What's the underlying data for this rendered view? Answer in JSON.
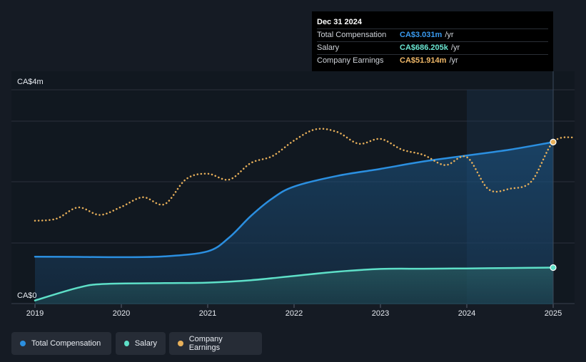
{
  "chart_data": {
    "type": "line",
    "title": "",
    "xlabel": "",
    "ylabel": "",
    "x_ticks": [
      "2019",
      "2020",
      "2021",
      "2022",
      "2023",
      "2024",
      "2025"
    ],
    "y_tick_labels": {
      "top": "CA$4m",
      "bottom": "CA$0"
    },
    "ylim": [
      0,
      3.5
    ],
    "legend_position": "bottom-left",
    "grid": true,
    "series": [
      {
        "name": "Total Compensation",
        "color": "#2b8fe0",
        "style": "solid-area",
        "points": [
          [
            2019.0,
            0.89
          ],
          [
            2019.5,
            0.885
          ],
          [
            2020.0,
            0.88
          ],
          [
            2020.5,
            0.895
          ],
          [
            2021.0,
            0.99
          ],
          [
            2021.25,
            1.25
          ],
          [
            2021.5,
            1.65
          ],
          [
            2021.75,
            1.98
          ],
          [
            2022.0,
            2.2
          ],
          [
            2022.5,
            2.4
          ],
          [
            2023.0,
            2.53
          ],
          [
            2023.5,
            2.67
          ],
          [
            2024.0,
            2.78
          ],
          [
            2024.5,
            2.89
          ],
          [
            2025.0,
            3.031
          ]
        ]
      },
      {
        "name": "Salary",
        "color": "#5ee0c8",
        "style": "solid-area",
        "points": [
          [
            2019.0,
            0.07
          ],
          [
            2019.5,
            0.31
          ],
          [
            2019.8,
            0.38
          ],
          [
            2020.5,
            0.395
          ],
          [
            2021.0,
            0.405
          ],
          [
            2021.5,
            0.45
          ],
          [
            2022.0,
            0.53
          ],
          [
            2022.5,
            0.61
          ],
          [
            2023.0,
            0.66
          ],
          [
            2023.5,
            0.665
          ],
          [
            2024.0,
            0.67
          ],
          [
            2024.5,
            0.678
          ],
          [
            2025.0,
            0.686
          ]
        ]
      },
      {
        "name": "Company Earnings",
        "color": "#e8b05a",
        "style": "dotted",
        "points": [
          [
            2019.0,
            1.56
          ],
          [
            2019.25,
            1.6
          ],
          [
            2019.5,
            1.81
          ],
          [
            2019.75,
            1.67
          ],
          [
            2020.0,
            1.82
          ],
          [
            2020.25,
            2.0
          ],
          [
            2020.5,
            1.87
          ],
          [
            2020.75,
            2.34
          ],
          [
            2021.0,
            2.44
          ],
          [
            2021.25,
            2.33
          ],
          [
            2021.5,
            2.64
          ],
          [
            2021.75,
            2.77
          ],
          [
            2022.0,
            3.06
          ],
          [
            2022.25,
            3.27
          ],
          [
            2022.5,
            3.22
          ],
          [
            2022.75,
            3.0
          ],
          [
            2023.0,
            3.09
          ],
          [
            2023.25,
            2.89
          ],
          [
            2023.5,
            2.79
          ],
          [
            2023.75,
            2.6
          ],
          [
            2024.0,
            2.75
          ],
          [
            2024.25,
            2.15
          ],
          [
            2024.5,
            2.16
          ],
          [
            2024.75,
            2.3
          ],
          [
            2025.0,
            3.031
          ],
          [
            2025.25,
            3.12
          ]
        ]
      }
    ],
    "highlight_band": {
      "from": 2024.0,
      "to": 2025.0
    },
    "marker_x": 2025.0
  },
  "tooltip": {
    "date": "Dec 31 2024",
    "rows": [
      {
        "name": "Total Compensation",
        "value": "CA$3.031m",
        "unit": "/yr",
        "color": "#3a9bf0"
      },
      {
        "name": "Salary",
        "value": "CA$686.205k",
        "unit": "/yr",
        "color": "#6ae6d2"
      },
      {
        "name": "Company Earnings",
        "value": "CA$51.914m",
        "unit": "/yr",
        "color": "#f0b868"
      }
    ]
  },
  "legend": {
    "items": [
      {
        "label": "Total Compensation",
        "color": "#2b8fe0"
      },
      {
        "label": "Salary",
        "color": "#5ee0c8"
      },
      {
        "label": "Company Earnings",
        "color": "#e8b05a"
      }
    ]
  }
}
